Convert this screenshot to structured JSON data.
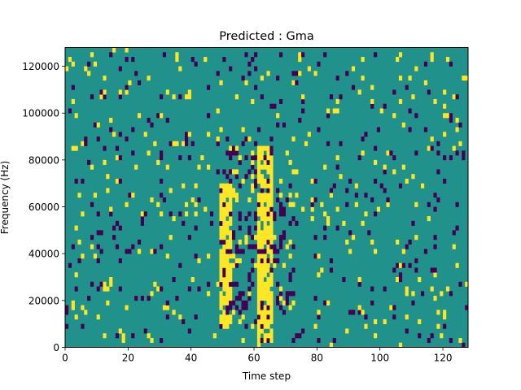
{
  "chart_data": {
    "type": "heatmap",
    "title": "Predicted : Gma",
    "xlabel": "Time step",
    "ylabel": "Frequency (Hz)",
    "xlim": [
      0,
      128
    ],
    "ylim": [
      0,
      128000
    ],
    "x_ticks": [
      0,
      20,
      40,
      60,
      80,
      100,
      120
    ],
    "y_ticks": [
      0,
      20000,
      40000,
      60000,
      80000,
      100000,
      120000
    ],
    "y_tick_labels": [
      "0",
      "20000",
      "40000",
      "60000",
      "80000",
      "100000",
      "120000"
    ],
    "grid": false,
    "legend": "none",
    "n_time_steps": 128,
    "n_freq_bins": 64,
    "colors": {
      "low": "#440154",
      "mid": "#21918c",
      "high": "#fde725"
    },
    "background_value": "mid",
    "high_regions": [
      {
        "x": [
          49,
          52
        ],
        "f": [
          8000,
          70000
        ]
      },
      {
        "x": [
          61,
          65
        ],
        "f": [
          2000,
          86000
        ]
      }
    ],
    "dense_low_regions": [
      {
        "x": [
          51,
          60
        ],
        "f": [
          8000,
          90000
        ]
      },
      {
        "x": [
          64,
          72
        ],
        "f": [
          14000,
          76000
        ]
      }
    ],
    "scattered_high_fraction": 0.035,
    "scattered_low_fraction": 0.04,
    "random_seed": 7
  }
}
